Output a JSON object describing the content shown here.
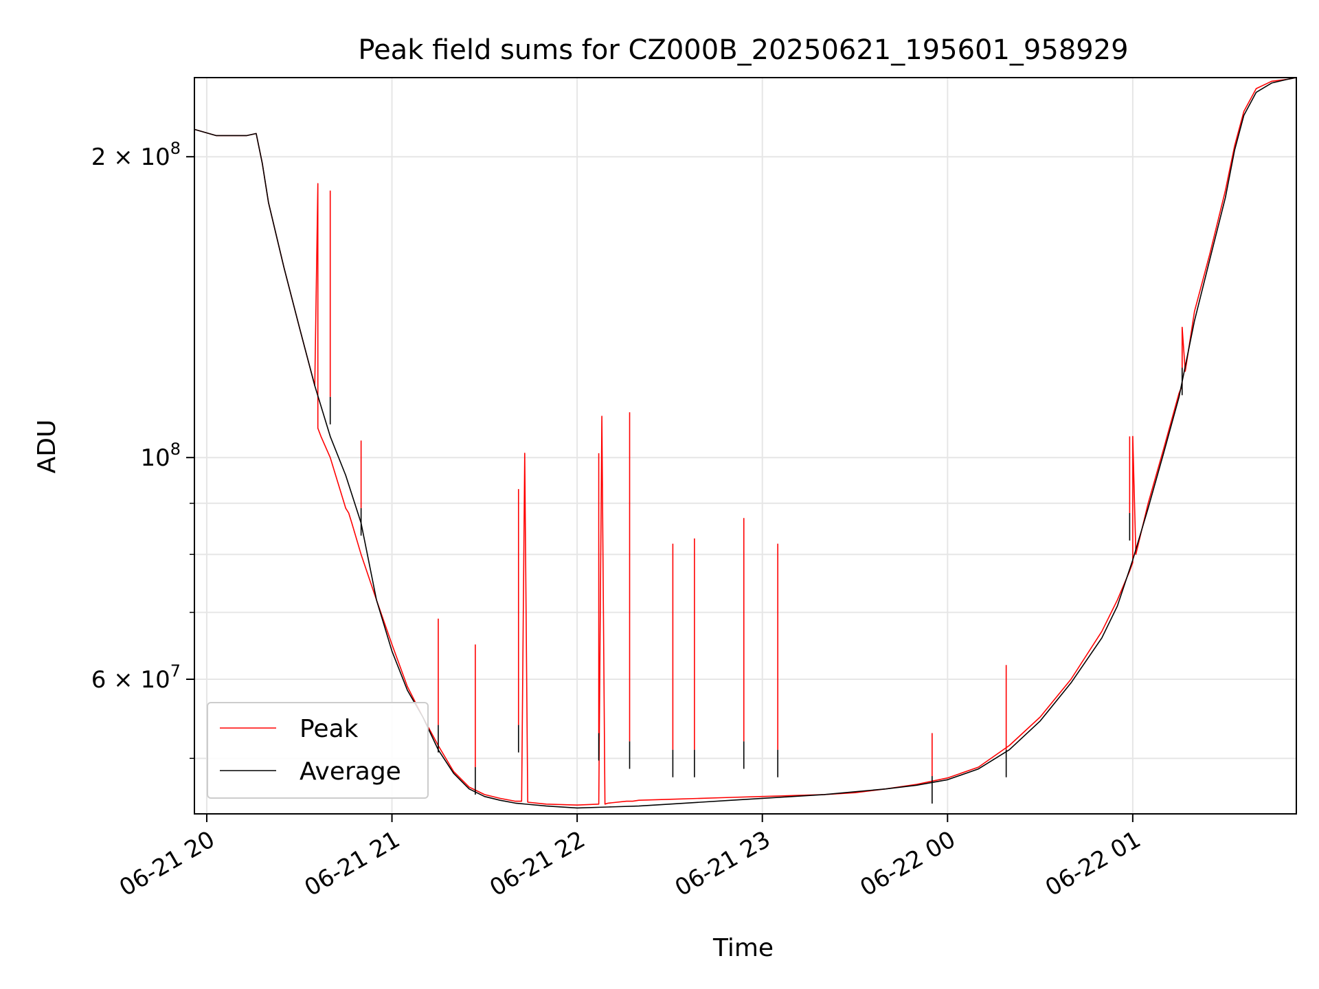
{
  "chart_data": {
    "type": "line",
    "title": "Peak field sums for CZ000B_20250621_195601_958929",
    "xlabel": "Time",
    "ylabel": "ADU",
    "y_scale": "log",
    "grid": true,
    "legend_position": "lower-left",
    "xlim": [
      "2025-06-21T19:56",
      "2025-06-22T01:53"
    ],
    "ylim": [
      44000000,
      240000000
    ],
    "x_ticks": [
      {
        "value": "2025-06-21T20:00",
        "label": "06-21 20"
      },
      {
        "value": "2025-06-21T21:00",
        "label": "06-21 21"
      },
      {
        "value": "2025-06-21T22:00",
        "label": "06-21 22"
      },
      {
        "value": "2025-06-21T23:00",
        "label": "06-21 23"
      },
      {
        "value": "2025-06-22T00:00",
        "label": "06-22 00"
      },
      {
        "value": "2025-06-22T01:00",
        "label": "06-22 01"
      }
    ],
    "y_ticks": [
      {
        "value": 200000000,
        "base": "2 × 10",
        "exp": "8"
      },
      {
        "value": 100000000,
        "base": "10",
        "exp": "8"
      },
      {
        "value": 60000000,
        "base": "6 × 10",
        "exp": "7"
      }
    ],
    "y_minor_ticks": [
      50000000,
      70000000,
      80000000,
      90000000
    ],
    "series": [
      {
        "name": "Peak",
        "color": "#ff0000",
        "x": [
          "2025-06-21T19:56",
          "2025-06-21T20:03",
          "2025-06-21T20:13",
          "2025-06-21T20:16",
          "2025-06-21T20:18",
          "2025-06-21T20:20",
          "2025-06-21T20:25",
          "2025-06-21T20:30",
          "2025-06-21T20:35",
          "2025-06-21T20:36",
          "2025-06-21T20:36",
          "2025-06-21T20:37",
          "2025-06-21T20:40",
          "2025-06-21T20:45",
          "2025-06-21T20:46",
          "2025-06-21T20:47",
          "2025-06-21T20:50",
          "2025-06-21T20:55",
          "2025-06-21T21:00",
          "2025-06-21T21:05",
          "2025-06-21T21:10",
          "2025-06-21T21:15",
          "2025-06-21T21:20",
          "2025-06-21T21:25",
          "2025-06-21T21:30",
          "2025-06-21T21:35",
          "2025-06-21T21:40",
          "2025-06-21T21:42",
          "2025-06-21T21:43",
          "2025-06-21T21:44",
          "2025-06-21T21:50",
          "2025-06-21T22:00",
          "2025-06-21T22:07",
          "2025-06-21T22:08",
          "2025-06-21T22:09",
          "2025-06-21T22:10",
          "2025-06-21T22:16",
          "2025-06-21T22:17",
          "2025-06-21T22:18",
          "2025-06-21T22:20",
          "2025-06-21T22:30",
          "2025-06-21T22:40",
          "2025-06-21T22:50",
          "2025-06-21T23:00",
          "2025-06-21T23:10",
          "2025-06-21T23:20",
          "2025-06-21T23:30",
          "2025-06-21T23:40",
          "2025-06-21T23:50",
          "2025-06-22T00:00",
          "2025-06-22T00:10",
          "2025-06-22T00:20",
          "2025-06-22T00:30",
          "2025-06-22T00:40",
          "2025-06-22T00:50",
          "2025-06-22T00:55",
          "2025-06-22T00:59",
          "2025-06-22T01:00",
          "2025-06-22T01:00",
          "2025-06-22T01:01",
          "2025-06-22T01:05",
          "2025-06-22T01:10",
          "2025-06-22T01:15",
          "2025-06-22T01:16",
          "2025-06-22T01:16",
          "2025-06-22T01:17",
          "2025-06-22T01:20",
          "2025-06-22T01:25",
          "2025-06-22T01:30",
          "2025-06-22T01:33",
          "2025-06-22T01:36",
          "2025-06-22T01:40",
          "2025-06-22T01:45",
          "2025-06-22T01:50",
          "2025-06-22T01:53"
        ],
        "y": [
          213000000,
          210000000,
          210000000,
          211000000,
          197000000,
          180000000,
          155000000,
          135000000,
          118000000,
          188000000,
          107000000,
          105000000,
          100000000,
          89000000,
          88000000,
          86000000,
          80000000,
          72000000,
          65000000,
          59000000,
          55000000,
          51500000,
          48500000,
          46800000,
          46000000,
          45600000,
          45300000,
          45300000,
          101000000,
          45200000,
          45000000,
          44900000,
          45000000,
          110000000,
          45000000,
          45100000,
          45300000,
          45300000,
          45300000,
          45400000,
          45500000,
          45600000,
          45700000,
          45800000,
          45900000,
          46000000,
          46200000,
          46600000,
          47100000,
          47800000,
          49000000,
          51500000,
          55000000,
          60000000,
          67000000,
          72000000,
          77000000,
          78500000,
          105000000,
          80000000,
          90000000,
          102000000,
          116000000,
          118000000,
          135000000,
          122000000,
          140000000,
          160000000,
          185000000,
          205000000,
          222000000,
          234000000,
          238000000,
          239000000,
          240000000
        ],
        "spikes": [
          {
            "x": "2025-06-21T20:40",
            "peak": 185000000,
            "avg": 115000000
          },
          {
            "x": "2025-06-21T20:50",
            "peak": 104000000,
            "avg": 89000000
          },
          {
            "x": "2025-06-21T21:15",
            "peak": 69000000,
            "avg": 54000000
          },
          {
            "x": "2025-06-21T21:27",
            "peak": 65000000,
            "avg": 49000000
          },
          {
            "x": "2025-06-21T21:41",
            "peak": 93000000,
            "avg": 54000000
          },
          {
            "x": "2025-06-21T22:07",
            "peak": 101000000,
            "avg": 53000000
          },
          {
            "x": "2025-06-21T22:17",
            "peak": 111000000,
            "avg": 52000000
          },
          {
            "x": "2025-06-21T22:31",
            "peak": 82000000,
            "avg": 51000000
          },
          {
            "x": "2025-06-21T22:38",
            "peak": 83000000,
            "avg": 51000000
          },
          {
            "x": "2025-06-21T22:54",
            "peak": 87000000,
            "avg": 52000000
          },
          {
            "x": "2025-06-21T23:05",
            "peak": 82000000,
            "avg": 51000000
          },
          {
            "x": "2025-06-21T23:55",
            "peak": 53000000,
            "avg": 48000000
          },
          {
            "x": "2025-06-22T00:19",
            "peak": 62000000,
            "avg": 51000000
          },
          {
            "x": "2025-06-22T00:59",
            "peak": 105000000,
            "avg": 88000000
          },
          {
            "x": "2025-06-22T01:16",
            "peak": 135000000,
            "avg": 123000000
          }
        ]
      },
      {
        "name": "Average",
        "color": "#000000",
        "x": [
          "2025-06-21T19:56",
          "2025-06-21T20:03",
          "2025-06-21T20:13",
          "2025-06-21T20:16",
          "2025-06-21T20:18",
          "2025-06-21T20:20",
          "2025-06-21T20:25",
          "2025-06-21T20:30",
          "2025-06-21T20:35",
          "2025-06-21T20:40",
          "2025-06-21T20:45",
          "2025-06-21T20:50",
          "2025-06-21T20:55",
          "2025-06-21T21:00",
          "2025-06-21T21:05",
          "2025-06-21T21:10",
          "2025-06-21T21:15",
          "2025-06-21T21:20",
          "2025-06-21T21:25",
          "2025-06-21T21:30",
          "2025-06-21T21:35",
          "2025-06-21T21:40",
          "2025-06-21T21:50",
          "2025-06-21T22:00",
          "2025-06-21T22:10",
          "2025-06-21T22:20",
          "2025-06-21T22:30",
          "2025-06-21T22:40",
          "2025-06-21T22:50",
          "2025-06-21T23:00",
          "2025-06-21T23:10",
          "2025-06-21T23:20",
          "2025-06-21T23:30",
          "2025-06-21T23:40",
          "2025-06-21T23:50",
          "2025-06-22T00:00",
          "2025-06-22T00:10",
          "2025-06-22T00:20",
          "2025-06-22T00:30",
          "2025-06-22T00:40",
          "2025-06-22T00:50",
          "2025-06-22T00:55",
          "2025-06-22T01:00",
          "2025-06-22T01:05",
          "2025-06-22T01:10",
          "2025-06-22T01:15",
          "2025-06-22T01:20",
          "2025-06-22T01:25",
          "2025-06-22T01:30",
          "2025-06-22T01:33",
          "2025-06-22T01:36",
          "2025-06-22T01:40",
          "2025-06-22T01:45",
          "2025-06-22T01:50",
          "2025-06-22T01:53"
        ],
        "y": [
          213000000,
          210000000,
          210000000,
          211000000,
          197000000,
          180000000,
          155000000,
          135000000,
          118000000,
          105000000,
          96000000,
          86000000,
          72000000,
          64000000,
          58500000,
          55000000,
          51000000,
          48300000,
          46600000,
          45800000,
          45400000,
          45100000,
          44800000,
          44600000,
          44700000,
          44800000,
          45000000,
          45200000,
          45400000,
          45600000,
          45800000,
          46000000,
          46300000,
          46600000,
          47000000,
          47600000,
          48800000,
          51000000,
          54500000,
          59500000,
          66000000,
          71000000,
          79000000,
          89000000,
          101000000,
          115000000,
          137000000,
          158000000,
          182000000,
          203000000,
          220000000,
          232000000,
          237000000,
          239000000,
          240000000
        ]
      }
    ]
  }
}
